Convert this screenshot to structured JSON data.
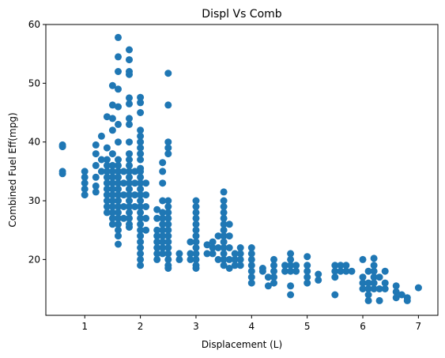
{
  "chart_data": {
    "type": "scatter",
    "title": "Displ Vs Comb",
    "xlabel": "Displacement (L)",
    "ylabel": "Combined Fuel Eff(mpg)",
    "xlim": [
      0.3,
      7.35
    ],
    "ylim": [
      10.5,
      60
    ],
    "xticks": [
      1,
      2,
      3,
      4,
      5,
      6,
      7
    ],
    "yticks": [
      20,
      30,
      40,
      50,
      60
    ],
    "grid": false,
    "legend": "none",
    "marker_color": "#1f77b4",
    "series": [
      {
        "values": [
          [
            0.6,
            39.5
          ],
          [
            0.6,
            39.2
          ],
          [
            0.6,
            35.0
          ],
          [
            0.6,
            34.6
          ],
          [
            1.0,
            35.0
          ],
          [
            1.0,
            34.0
          ],
          [
            1.0,
            33.0
          ],
          [
            1.0,
            32.0
          ],
          [
            1.0,
            31.0
          ],
          [
            1.2,
            39.5
          ],
          [
            1.2,
            38.0
          ],
          [
            1.2,
            36.0
          ],
          [
            1.2,
            34.0
          ],
          [
            1.2,
            32.5
          ],
          [
            1.2,
            31.5
          ],
          [
            1.3,
            41.0
          ],
          [
            1.3,
            37.0
          ],
          [
            1.3,
            35.0
          ],
          [
            1.4,
            44.3
          ],
          [
            1.4,
            39.0
          ],
          [
            1.4,
            37.0
          ],
          [
            1.4,
            36.0
          ],
          [
            1.4,
            35.0
          ],
          [
            1.4,
            34.0
          ],
          [
            1.4,
            33.0
          ],
          [
            1.4,
            32.0
          ],
          [
            1.4,
            31.0
          ],
          [
            1.4,
            30.0
          ],
          [
            1.4,
            29.0
          ],
          [
            1.4,
            28.0
          ],
          [
            1.5,
            49.6
          ],
          [
            1.5,
            46.3
          ],
          [
            1.5,
            44.0
          ],
          [
            1.5,
            42.0
          ],
          [
            1.5,
            38.0
          ],
          [
            1.5,
            36.0
          ],
          [
            1.5,
            35.0
          ],
          [
            1.5,
            34.0
          ],
          [
            1.5,
            33.0
          ],
          [
            1.5,
            32.0
          ],
          [
            1.5,
            31.0
          ],
          [
            1.5,
            30.0
          ],
          [
            1.5,
            29.0
          ],
          [
            1.5,
            28.0
          ],
          [
            1.5,
            27.0
          ],
          [
            1.5,
            26.0
          ],
          [
            1.6,
            57.8
          ],
          [
            1.6,
            54.5
          ],
          [
            1.6,
            52.0
          ],
          [
            1.6,
            49.0
          ],
          [
            1.6,
            46.0
          ],
          [
            1.6,
            43.0
          ],
          [
            1.6,
            40.0
          ],
          [
            1.6,
            37.0
          ],
          [
            1.6,
            36.0
          ],
          [
            1.6,
            35.0
          ],
          [
            1.6,
            34.0
          ],
          [
            1.6,
            33.0
          ],
          [
            1.6,
            32.0
          ],
          [
            1.6,
            31.0
          ],
          [
            1.6,
            30.0
          ],
          [
            1.6,
            29.0
          ],
          [
            1.6,
            28.0
          ],
          [
            1.6,
            27.0
          ],
          [
            1.6,
            26.0
          ],
          [
            1.6,
            25.0
          ],
          [
            1.6,
            24.0
          ],
          [
            1.6,
            22.6
          ],
          [
            1.7,
            35.0
          ],
          [
            1.7,
            33.0
          ],
          [
            1.7,
            31.0
          ],
          [
            1.7,
            29.0
          ],
          [
            1.7,
            27.0
          ],
          [
            1.8,
            55.7
          ],
          [
            1.8,
            54.0
          ],
          [
            1.8,
            52.0
          ],
          [
            1.8,
            51.5
          ],
          [
            1.8,
            47.5
          ],
          [
            1.8,
            46.5
          ],
          [
            1.8,
            44.0
          ],
          [
            1.8,
            43.0
          ],
          [
            1.8,
            40.0
          ],
          [
            1.8,
            38.0
          ],
          [
            1.8,
            37.0
          ],
          [
            1.8,
            36.0
          ],
          [
            1.8,
            35.0
          ],
          [
            1.8,
            34.0
          ],
          [
            1.8,
            33.0
          ],
          [
            1.8,
            32.0
          ],
          [
            1.8,
            31.0
          ],
          [
            1.8,
            30.0
          ],
          [
            1.8,
            29.0
          ],
          [
            1.8,
            28.0
          ],
          [
            1.8,
            27.0
          ],
          [
            1.8,
            26.0
          ],
          [
            1.8,
            25.5
          ],
          [
            1.9,
            35.0
          ],
          [
            1.9,
            33.0
          ],
          [
            1.9,
            31.0
          ],
          [
            1.9,
            29.0
          ],
          [
            2.0,
            47.6
          ],
          [
            2.0,
            46.7
          ],
          [
            2.0,
            45.0
          ],
          [
            2.0,
            42.0
          ],
          [
            2.0,
            41.0
          ],
          [
            2.0,
            40.0
          ],
          [
            2.0,
            39.0
          ],
          [
            2.0,
            38.0
          ],
          [
            2.0,
            37.0
          ],
          [
            2.0,
            35.5
          ],
          [
            2.0,
            35.0
          ],
          [
            2.0,
            34.0
          ],
          [
            2.0,
            33.0
          ],
          [
            2.0,
            32.0
          ],
          [
            2.0,
            31.0
          ],
          [
            2.0,
            30.0
          ],
          [
            2.0,
            29.0
          ],
          [
            2.0,
            28.0
          ],
          [
            2.0,
            27.0
          ],
          [
            2.0,
            26.0
          ],
          [
            2.0,
            25.0
          ],
          [
            2.0,
            24.0
          ],
          [
            2.0,
            23.0
          ],
          [
            2.0,
            22.0
          ],
          [
            2.0,
            21.0
          ],
          [
            2.0,
            20.0
          ],
          [
            2.0,
            19.0
          ],
          [
            2.1,
            33.0
          ],
          [
            2.1,
            31.0
          ],
          [
            2.1,
            29.0
          ],
          [
            2.1,
            27.0
          ],
          [
            2.1,
            25.0
          ],
          [
            2.3,
            28.5
          ],
          [
            2.3,
            27.0
          ],
          [
            2.3,
            25.0
          ],
          [
            2.3,
            24.0
          ],
          [
            2.3,
            23.0
          ],
          [
            2.3,
            22.0
          ],
          [
            2.3,
            21.0
          ],
          [
            2.3,
            20.0
          ],
          [
            2.4,
            36.5
          ],
          [
            2.4,
            35.0
          ],
          [
            2.4,
            33.0
          ],
          [
            2.4,
            30.0
          ],
          [
            2.4,
            28.0
          ],
          [
            2.4,
            27.0
          ],
          [
            2.4,
            26.0
          ],
          [
            2.4,
            25.0
          ],
          [
            2.4,
            24.0
          ],
          [
            2.4,
            23.0
          ],
          [
            2.4,
            22.0
          ],
          [
            2.4,
            21.0
          ],
          [
            2.5,
            51.7
          ],
          [
            2.5,
            46.3
          ],
          [
            2.5,
            40.0
          ],
          [
            2.5,
            39.0
          ],
          [
            2.5,
            38.0
          ],
          [
            2.5,
            30.0
          ],
          [
            2.5,
            29.0
          ],
          [
            2.5,
            28.0
          ],
          [
            2.5,
            27.0
          ],
          [
            2.5,
            26.0
          ],
          [
            2.5,
            25.0
          ],
          [
            2.5,
            24.0
          ],
          [
            2.5,
            23.0
          ],
          [
            2.5,
            22.0
          ],
          [
            2.5,
            21.0
          ],
          [
            2.5,
            20.0
          ],
          [
            2.5,
            19.0
          ],
          [
            2.5,
            18.5
          ],
          [
            2.7,
            21.0
          ],
          [
            2.7,
            20.0
          ],
          [
            2.9,
            23.0
          ],
          [
            2.9,
            21.0
          ],
          [
            2.9,
            20.0
          ],
          [
            3.0,
            30.0
          ],
          [
            3.0,
            29.0
          ],
          [
            3.0,
            28.0
          ],
          [
            3.0,
            27.0
          ],
          [
            3.0,
            26.0
          ],
          [
            3.0,
            25.0
          ],
          [
            3.0,
            24.0
          ],
          [
            3.0,
            23.0
          ],
          [
            3.0,
            22.0
          ],
          [
            3.0,
            21.0
          ],
          [
            3.0,
            20.0
          ],
          [
            3.0,
            19.0
          ],
          [
            3.0,
            18.5
          ],
          [
            3.2,
            22.5
          ],
          [
            3.2,
            21.0
          ],
          [
            3.3,
            23.0
          ],
          [
            3.3,
            22.0
          ],
          [
            3.3,
            21.0
          ],
          [
            3.4,
            24.0
          ],
          [
            3.4,
            22.0
          ],
          [
            3.4,
            20.0
          ],
          [
            3.5,
            31.5
          ],
          [
            3.5,
            30.0
          ],
          [
            3.5,
            29.0
          ],
          [
            3.5,
            28.0
          ],
          [
            3.5,
            27.0
          ],
          [
            3.5,
            26.0
          ],
          [
            3.5,
            25.0
          ],
          [
            3.5,
            24.0
          ],
          [
            3.5,
            23.0
          ],
          [
            3.5,
            22.0
          ],
          [
            3.5,
            21.0
          ],
          [
            3.5,
            20.0
          ],
          [
            3.5,
            19.0
          ],
          [
            3.6,
            26.0
          ],
          [
            3.6,
            24.0
          ],
          [
            3.6,
            22.0
          ],
          [
            3.6,
            20.0
          ],
          [
            3.6,
            18.5
          ],
          [
            3.7,
            21.0
          ],
          [
            3.7,
            20.0
          ],
          [
            3.7,
            19.0
          ],
          [
            3.8,
            22.0
          ],
          [
            3.8,
            21.0
          ],
          [
            3.8,
            20.0
          ],
          [
            3.8,
            19.0
          ],
          [
            4.0,
            22.0
          ],
          [
            4.0,
            21.0
          ],
          [
            4.0,
            20.0
          ],
          [
            4.0,
            19.0
          ],
          [
            4.0,
            18.0
          ],
          [
            4.0,
            17.0
          ],
          [
            4.0,
            16.0
          ],
          [
            4.2,
            18.5
          ],
          [
            4.2,
            18.0
          ],
          [
            4.3,
            17.0
          ],
          [
            4.3,
            15.5
          ],
          [
            4.4,
            20.0
          ],
          [
            4.4,
            19.0
          ],
          [
            4.4,
            18.0
          ],
          [
            4.4,
            17.0
          ],
          [
            4.4,
            16.0
          ],
          [
            4.6,
            19.0
          ],
          [
            4.6,
            18.0
          ],
          [
            4.7,
            21.0
          ],
          [
            4.7,
            20.0
          ],
          [
            4.7,
            19.0
          ],
          [
            4.7,
            18.0
          ],
          [
            4.7,
            15.5
          ],
          [
            4.7,
            14.0
          ],
          [
            4.8,
            19.0
          ],
          [
            4.8,
            18.0
          ],
          [
            5.0,
            20.5
          ],
          [
            5.0,
            19.0
          ],
          [
            5.0,
            18.0
          ],
          [
            5.0,
            17.0
          ],
          [
            5.0,
            16.0
          ],
          [
            5.2,
            17.5
          ],
          [
            5.2,
            16.5
          ],
          [
            5.5,
            19.0
          ],
          [
            5.5,
            18.0
          ],
          [
            5.5,
            17.0
          ],
          [
            5.5,
            14.0
          ],
          [
            5.6,
            19.0
          ],
          [
            5.6,
            18.0
          ],
          [
            5.7,
            19.0
          ],
          [
            5.7,
            18.0
          ],
          [
            5.8,
            18.0
          ],
          [
            6.0,
            20.0
          ],
          [
            6.0,
            17.0
          ],
          [
            6.0,
            16.0
          ],
          [
            6.0,
            15.0
          ],
          [
            6.1,
            18.0
          ],
          [
            6.1,
            16.0
          ],
          [
            6.1,
            15.0
          ],
          [
            6.1,
            14.0
          ],
          [
            6.1,
            13.0
          ],
          [
            6.2,
            20.2
          ],
          [
            6.2,
            19.0
          ],
          [
            6.2,
            18.0
          ],
          [
            6.2,
            17.0
          ],
          [
            6.2,
            16.0
          ],
          [
            6.2,
            15.0
          ],
          [
            6.3,
            17.0
          ],
          [
            6.3,
            15.0
          ],
          [
            6.3,
            13.0
          ],
          [
            6.4,
            18.0
          ],
          [
            6.4,
            16.0
          ],
          [
            6.4,
            15.0
          ],
          [
            6.6,
            15.5
          ],
          [
            6.6,
            14.5
          ],
          [
            6.6,
            13.5
          ],
          [
            6.7,
            14.0
          ],
          [
            6.8,
            13.5
          ],
          [
            6.8,
            13.0
          ],
          [
            7.0,
            15.2
          ]
        ]
      }
    ]
  }
}
